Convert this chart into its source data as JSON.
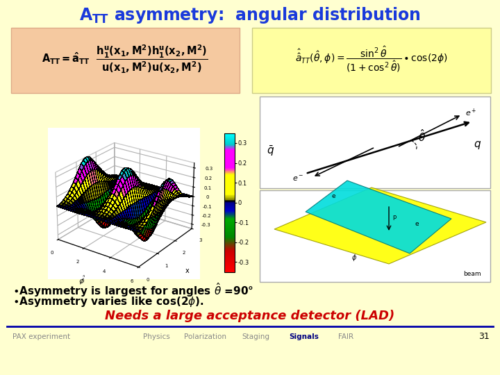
{
  "bg_color": "#ffffd0",
  "title_color": "#1a3adb",
  "title_fontsize": 17,
  "formula_box_color": "#f5c9a0",
  "formula_box2_color": "#ffffa0",
  "bullet_color": "#000000",
  "bullet_fontsize": 11,
  "needs_color": "#cc0000",
  "needs_fontsize": 13,
  "footer_left": "PAX experiment",
  "footer_items": [
    "Physics",
    "Polarization",
    "Staging",
    "Signals",
    "FAIR"
  ],
  "footer_page": "31",
  "footer_color": "#888888",
  "footer_signals_color": "#000080",
  "line_color": "#0000aa",
  "cbar_colors": [
    "#00cccc",
    "#00cccc",
    "#ff00ff",
    "#ff00ff",
    "#ffff00",
    "#ffff00",
    "#000000",
    "#0000cc",
    "#0000cc",
    "#00aa00",
    "#00aa00",
    "#ff0000"
  ],
  "colorbar_values": [
    "0.3",
    "0.2",
    "0.1",
    "0",
    "-0.1",
    "-0.2",
    "-0.3"
  ]
}
